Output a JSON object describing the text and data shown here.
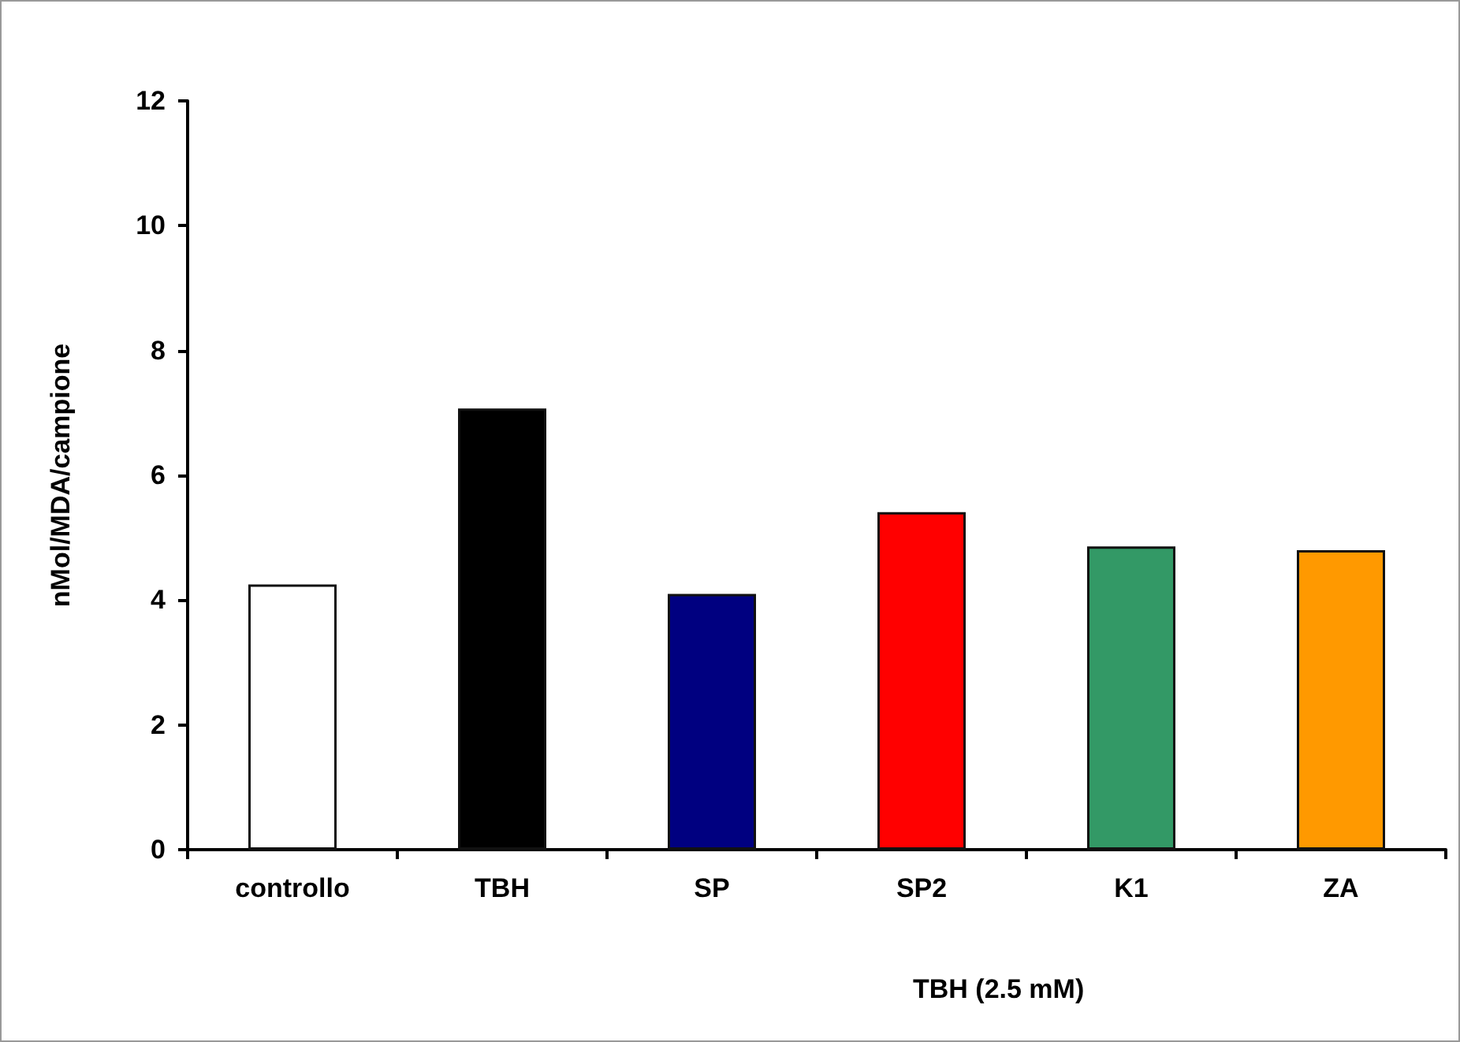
{
  "chart_data": {
    "type": "bar",
    "xlabel": "TBH (2.5 mM)",
    "ylabel": "nMol/MDA/campione",
    "categories": [
      "controllo",
      "TBH",
      "SP",
      "SP2",
      "K1",
      "ZA"
    ],
    "values": [
      4.25,
      7.07,
      4.1,
      5.41,
      4.86,
      4.8
    ],
    "colors": [
      "#ffffff",
      "#000000",
      "#000080",
      "#ff0000",
      "#339966",
      "#ff9900"
    ],
    "ylim": [
      0,
      12
    ],
    "yticks": [
      0,
      2,
      4,
      6,
      8,
      10,
      12
    ]
  }
}
